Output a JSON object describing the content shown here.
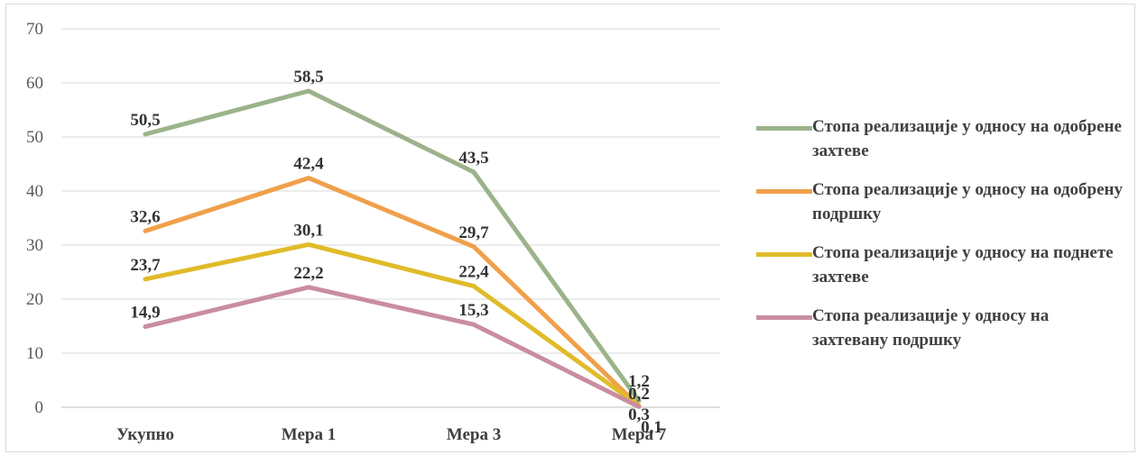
{
  "chart_data": {
    "type": "line",
    "categories": [
      "Укупно",
      "Мера 1",
      "Мера 3",
      "Мера 7"
    ],
    "series": [
      {
        "name": "Стопа реализације у односу на одобрене захтеве",
        "color": "#9bb38a",
        "values": [
          50.5,
          58.5,
          43.5,
          1.2
        ],
        "labels": [
          "50,5",
          "58,5",
          "43,5",
          "1,2"
        ]
      },
      {
        "name": "Стопа реализације у односу на одобрену подршку",
        "color": "#f0a04b",
        "values": [
          32.6,
          42.4,
          29.7,
          0.2
        ],
        "labels": [
          "32,6",
          "42,4",
          "29,7",
          "0,2"
        ]
      },
      {
        "name": "Стопа реализације у односу на поднете захтеве",
        "color": "#e0bb2a",
        "values": [
          23.7,
          30.1,
          22.4,
          0.3
        ],
        "labels": [
          "23,7",
          "30,1",
          "22,4",
          "0,3"
        ]
      },
      {
        "name": "Стопа реализације у односу на захтевану подршку",
        "color": "#c98da0",
        "values": [
          14.9,
          22.2,
          15.3,
          0.1
        ],
        "labels": [
          "14,9",
          "22,2",
          "15,3",
          "0,1"
        ]
      }
    ],
    "ylim": [
      0,
      70
    ],
    "yticks": [
      "0",
      "10",
      "20",
      "30",
      "40",
      "50",
      "60",
      "70"
    ],
    "grid": true,
    "legend": "right"
  }
}
